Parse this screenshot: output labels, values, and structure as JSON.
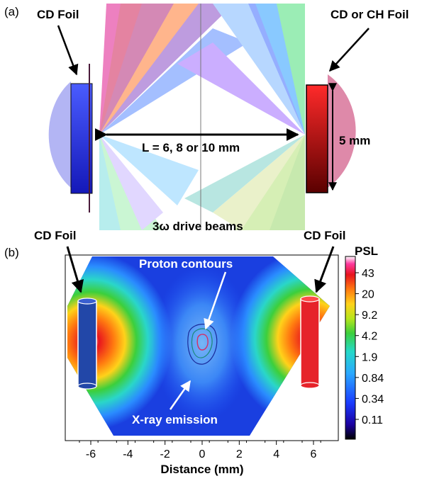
{
  "panel_a": {
    "tag": "(a)",
    "left_foil_label": "CD Foil",
    "right_foil_label": "CD or CH Foil",
    "separation_label": "L = 6, 8 or 10 mm",
    "height_label": "5 mm",
    "beams_label": "3ω drive beams"
  },
  "panel_b": {
    "tag": "(b)",
    "left_foil_label": "CD Foil",
    "right_foil_label": "CD Foil",
    "proton_label": "Proton contours",
    "xray_label": "X-ray emission",
    "xlabel": "Distance (mm)",
    "x_ticks": [
      "-6",
      "-4",
      "-2",
      "0",
      "2",
      "4",
      "6"
    ],
    "colorbar_title": "PSL",
    "colorbar_ticks": [
      "43",
      "20",
      "9.2",
      "4.2",
      "1.9",
      "0.84",
      "0.34",
      "0.11"
    ]
  }
}
